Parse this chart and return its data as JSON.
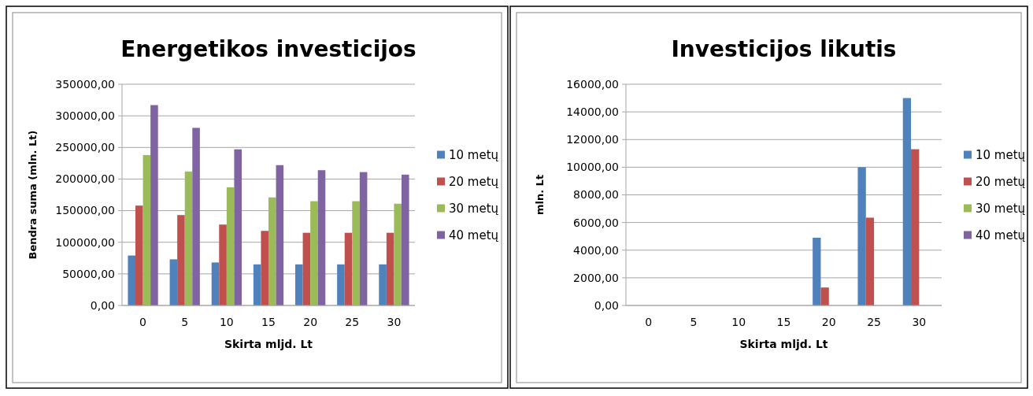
{
  "chart_data": [
    {
      "type": "bar",
      "title": "Energetikos investicijos",
      "xlabel": "Skirta mljd. Lt",
      "ylabel": "Bendra suma (mln. Lt)",
      "categories": [
        "0",
        "5",
        "10",
        "15",
        "20",
        "25",
        "30"
      ],
      "series": [
        {
          "name": "10 metų",
          "color": "#4f81bd",
          "values": [
            79000,
            73000,
            68000,
            65000,
            65000,
            65000,
            65000
          ]
        },
        {
          "name": "20 metų",
          "color": "#c0504d",
          "values": [
            158000,
            143000,
            128000,
            118000,
            115000,
            115000,
            115000
          ]
        },
        {
          "name": "30 metų",
          "color": "#9bbb59",
          "values": [
            238000,
            212000,
            187000,
            171000,
            165000,
            165000,
            161000
          ]
        },
        {
          "name": "40 metų",
          "color": "#8064a2",
          "values": [
            317000,
            281000,
            247000,
            222000,
            214000,
            211000,
            207000
          ]
        }
      ],
      "ylim": [
        0,
        350000
      ],
      "yticks": [
        {
          "value": 0,
          "label": "0,00"
        },
        {
          "value": 50000,
          "label": "50000,00"
        },
        {
          "value": 100000,
          "label": "100000,00"
        },
        {
          "value": 150000,
          "label": "150000,00"
        },
        {
          "value": 200000,
          "label": "200000,00"
        },
        {
          "value": 250000,
          "label": "250000,00"
        },
        {
          "value": 300000,
          "label": "300000,00"
        },
        {
          "value": 350000,
          "label": "350000,00"
        }
      ],
      "grid": "y",
      "legend": "right"
    },
    {
      "type": "bar",
      "title": "Investicijos likutis",
      "xlabel": "Skirta mljd. Lt",
      "ylabel": "mln. Lt",
      "categories": [
        "0",
        "5",
        "10",
        "15",
        "20",
        "25",
        "30"
      ],
      "series": [
        {
          "name": "10 metų",
          "color": "#4f81bd",
          "values": [
            0,
            0,
            0,
            0,
            4900,
            10000,
            15000
          ]
        },
        {
          "name": "20 metų",
          "color": "#c0504d",
          "values": [
            0,
            0,
            0,
            0,
            1300,
            6350,
            11300
          ]
        },
        {
          "name": "30 metų",
          "color": "#9bbb59",
          "values": [
            0,
            0,
            0,
            0,
            0,
            0,
            0
          ]
        },
        {
          "name": "40 metų",
          "color": "#8064a2",
          "values": [
            0,
            0,
            0,
            0,
            0,
            0,
            0
          ]
        }
      ],
      "ylim": [
        0,
        16000
      ],
      "yticks": [
        {
          "value": 0,
          "label": "0,00"
        },
        {
          "value": 2000,
          "label": "2000,00"
        },
        {
          "value": 4000,
          "label": "4000,00"
        },
        {
          "value": 6000,
          "label": "6000,00"
        },
        {
          "value": 8000,
          "label": "8000,00"
        },
        {
          "value": 10000,
          "label": "10000,00"
        },
        {
          "value": 12000,
          "label": "12000,00"
        },
        {
          "value": 14000,
          "label": "14000,00"
        },
        {
          "value": 16000,
          "label": "16000,00"
        }
      ],
      "grid": "y",
      "legend": "right"
    }
  ]
}
